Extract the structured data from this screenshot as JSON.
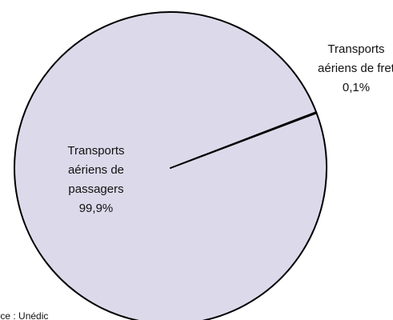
{
  "chart_data": {
    "type": "pie",
    "categories": [
      "Transports aériens de fret",
      "Transports aériens de passagers"
    ],
    "values": [
      0.1,
      99.9
    ],
    "value_labels": [
      "0,1%",
      "99,9%"
    ],
    "colors": [
      "#dcdaea",
      "#dcdaea"
    ],
    "source": "Source : Unédic"
  }
}
